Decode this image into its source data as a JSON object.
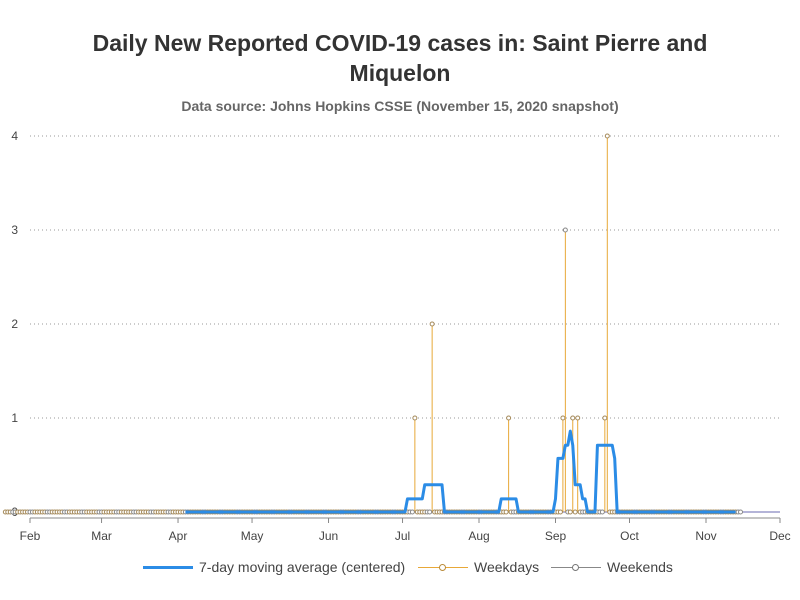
{
  "title": "Daily New Reported COVID-19 cases in: Saint Pierre and Miquelon",
  "subtitle": "Data source: Johns Hopkins CSSE (November 15, 2020 snapshot)",
  "colors": {
    "moving_avg": "#2B8CE6",
    "weekdays": "#E8A838",
    "weekends": "#888888",
    "grid": "#9a9a9a",
    "baseline": "#6a6ab0"
  },
  "chart_data": {
    "type": "line",
    "x_axis": {
      "range": [
        "2020-02-01",
        "2020-12-01"
      ],
      "tick_dates": [
        "2020-02-01",
        "2020-03-01",
        "2020-04-01",
        "2020-05-01",
        "2020-06-01",
        "2020-07-01",
        "2020-08-01",
        "2020-09-01",
        "2020-10-01",
        "2020-11-01",
        "2020-12-01"
      ],
      "tick_labels": [
        "Feb",
        "Mar",
        "Apr",
        "May",
        "Jun",
        "Jul",
        "Aug",
        "Sep",
        "Oct",
        "Nov",
        "Dec"
      ]
    },
    "y_axis": {
      "range": [
        0,
        4
      ],
      "ticks": [
        0,
        1,
        2,
        3,
        4
      ],
      "grid": true
    },
    "data_range": [
      "2020-01-22",
      "2020-11-15"
    ],
    "series": [
      {
        "name": "7-day moving average (centered)",
        "type": "line",
        "start": "2020-04-04",
        "end": "2020-11-13",
        "points": [
          [
            "2020-04-04",
            0
          ],
          [
            "2020-07-02",
            0
          ],
          [
            "2020-07-03",
            0.14
          ],
          [
            "2020-07-09",
            0.14
          ],
          [
            "2020-07-10",
            0.29
          ],
          [
            "2020-07-17",
            0.29
          ],
          [
            "2020-07-18",
            0
          ],
          [
            "2020-08-09",
            0
          ],
          [
            "2020-08-10",
            0.14
          ],
          [
            "2020-08-16",
            0.14
          ],
          [
            "2020-08-17",
            0
          ],
          [
            "2020-08-31",
            0
          ],
          [
            "2020-09-01",
            0.14
          ],
          [
            "2020-09-02",
            0.57
          ],
          [
            "2020-09-04",
            0.57
          ],
          [
            "2020-09-05",
            0.71
          ],
          [
            "2020-09-06",
            0.71
          ],
          [
            "2020-09-07",
            0.86
          ],
          [
            "2020-09-08",
            0.71
          ],
          [
            "2020-09-09",
            0.29
          ],
          [
            "2020-09-11",
            0.29
          ],
          [
            "2020-09-12",
            0.14
          ],
          [
            "2020-09-13",
            0.14
          ],
          [
            "2020-09-14",
            0
          ],
          [
            "2020-09-17",
            0
          ],
          [
            "2020-09-18",
            0.71
          ],
          [
            "2020-09-24",
            0.71
          ],
          [
            "2020-09-25",
            0.57
          ],
          [
            "2020-09-26",
            0
          ],
          [
            "2020-11-13",
            0
          ]
        ]
      },
      {
        "name": "Weekdays",
        "type": "stem",
        "points": [
          [
            "2020-07-06",
            1
          ],
          [
            "2020-07-13",
            2
          ],
          [
            "2020-08-13",
            1
          ],
          [
            "2020-09-04",
            1
          ],
          [
            "2020-09-05",
            3
          ],
          [
            "2020-09-08",
            1
          ],
          [
            "2020-09-10",
            1
          ],
          [
            "2020-09-21",
            1
          ],
          [
            "2020-09-22",
            4
          ]
        ]
      },
      {
        "name": "Weekends",
        "type": "stem",
        "points": []
      }
    ],
    "legend": {
      "position": "bottom"
    }
  },
  "legend_labels": {
    "moving_avg": "7-day moving average (centered)",
    "weekdays": "Weekdays",
    "weekends": "Weekends"
  }
}
